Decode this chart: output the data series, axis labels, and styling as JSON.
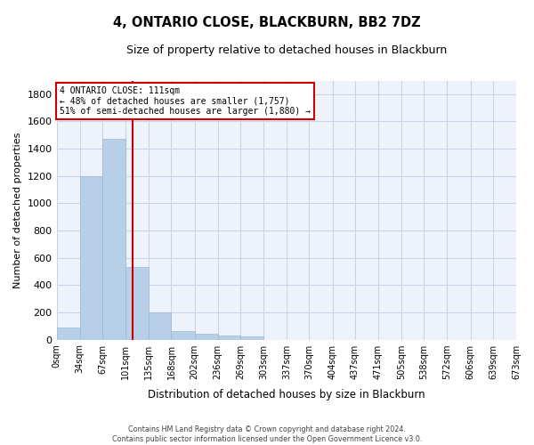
{
  "title": "4, ONTARIO CLOSE, BLACKBURN, BB2 7DZ",
  "subtitle": "Size of property relative to detached houses in Blackburn",
  "xlabel": "Distribution of detached houses by size in Blackburn",
  "ylabel": "Number of detached properties",
  "footer_line1": "Contains HM Land Registry data © Crown copyright and database right 2024.",
  "footer_line2": "Contains public sector information licensed under the Open Government Licence v3.0.",
  "bar_color": "#b8cfe8",
  "bar_edge_color": "#9ab8d8",
  "grid_color": "#c8d4e8",
  "background_color": "#eef2fb",
  "red_line_color": "#cc0000",
  "property_size": 111,
  "annotation_text_line1": "4 ONTARIO CLOSE: 111sqm",
  "annotation_text_line2": "← 48% of detached houses are smaller (1,757)",
  "annotation_text_line3": "51% of semi-detached houses are larger (1,880) →",
  "bin_edges": [
    0,
    34,
    67,
    101,
    135,
    168,
    202,
    236,
    269,
    303,
    337,
    370,
    404,
    437,
    471,
    505,
    538,
    572,
    606,
    639,
    673
  ],
  "bin_labels": [
    "0sqm",
    "34sqm",
    "67sqm",
    "101sqm",
    "135sqm",
    "168sqm",
    "202sqm",
    "236sqm",
    "269sqm",
    "303sqm",
    "337sqm",
    "370sqm",
    "404sqm",
    "437sqm",
    "471sqm",
    "505sqm",
    "538sqm",
    "572sqm",
    "606sqm",
    "639sqm",
    "673sqm"
  ],
  "bar_heights": [
    90,
    1200,
    1470,
    530,
    200,
    65,
    40,
    30,
    20,
    0,
    0,
    0,
    0,
    0,
    0,
    0,
    0,
    0,
    0,
    0
  ],
  "ylim": [
    0,
    1900
  ],
  "yticks": [
    0,
    200,
    400,
    600,
    800,
    1000,
    1200,
    1400,
    1600,
    1800
  ]
}
